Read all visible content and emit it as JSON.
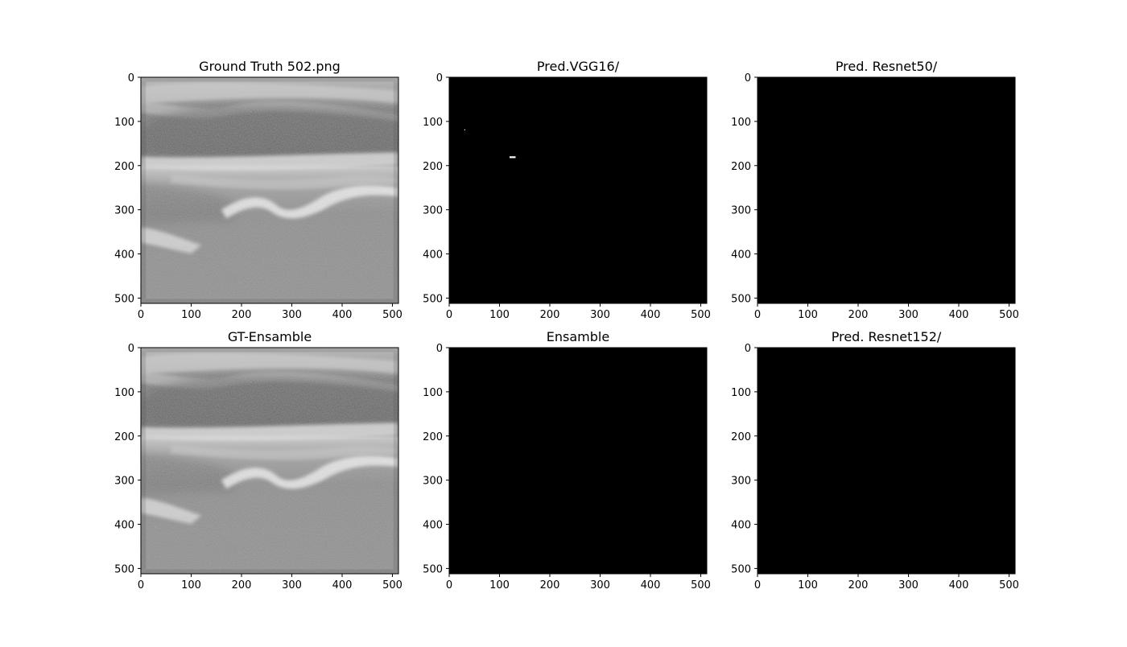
{
  "figure": {
    "panels": [
      {
        "title": "Ground Truth 502.png",
        "content": "ultrasound",
        "x_ticks": [
          "0",
          "100",
          "200",
          "300",
          "400",
          "500"
        ],
        "y_ticks": [
          "0",
          "100",
          "200",
          "300",
          "400",
          "500"
        ]
      },
      {
        "title": "Pred.VGG16/",
        "content": "mask",
        "mask_specks": [
          {
            "x": 30,
            "y": 118,
            "w": 2,
            "h": 2
          },
          {
            "x": 120,
            "y": 179,
            "w": 12,
            "h": 4
          }
        ],
        "x_ticks": [
          "0",
          "100",
          "200",
          "300",
          "400",
          "500"
        ],
        "y_ticks": [
          "0",
          "100",
          "200",
          "300",
          "400",
          "500"
        ]
      },
      {
        "title": "Pred. Resnet50/",
        "content": "mask",
        "mask_specks": [],
        "x_ticks": [
          "0",
          "100",
          "200",
          "300",
          "400",
          "500"
        ],
        "y_ticks": [
          "0",
          "100",
          "200",
          "300",
          "400",
          "500"
        ]
      },
      {
        "title": "GT-Ensamble",
        "content": "ultrasound",
        "x_ticks": [
          "0",
          "100",
          "200",
          "300",
          "400",
          "500"
        ],
        "y_ticks": [
          "0",
          "100",
          "200",
          "300",
          "400",
          "500"
        ]
      },
      {
        "title": "Ensamble",
        "content": "mask",
        "mask_specks": [],
        "x_ticks": [
          "0",
          "100",
          "200",
          "300",
          "400",
          "500"
        ],
        "y_ticks": [
          "0",
          "100",
          "200",
          "300",
          "400",
          "500"
        ]
      },
      {
        "title": "Pred. Resnet152/",
        "content": "mask",
        "mask_specks": [],
        "x_ticks": [
          "0",
          "100",
          "200",
          "300",
          "400",
          "500"
        ],
        "y_ticks": [
          "0",
          "100",
          "200",
          "300",
          "400",
          "500"
        ]
      }
    ],
    "image_extent": [
      0,
      512
    ],
    "colors": {
      "mask_background": "#000000",
      "mask_foreground": "#ffffff",
      "axis": "#000000",
      "page": "#ffffff"
    }
  }
}
